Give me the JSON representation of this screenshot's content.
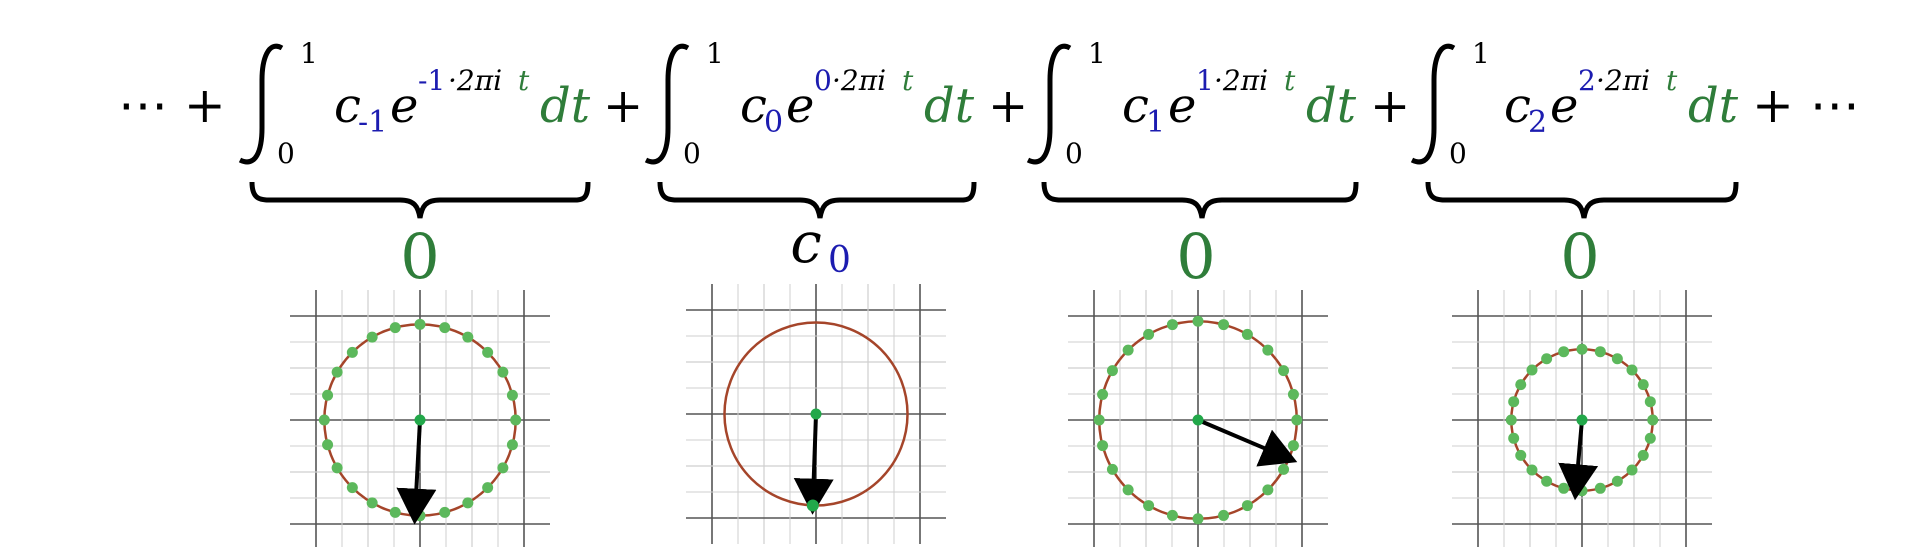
{
  "colors": {
    "index": "#1c1cb0",
    "green": "#2f7d3a",
    "circle": "#a5452a",
    "dots": "#5cb85c",
    "center": "#22a84a",
    "grid_major": "#555555",
    "grid_minor": "#cfcfcf"
  },
  "leading_ellipsis": "⋯ +",
  "trailing_ellipsis": "+ ⋯",
  "plus": "+",
  "terms": [
    {
      "upper": "1",
      "lower": "0",
      "coef": "c",
      "index": "-1",
      "exp_index": "-1",
      "exp_rest": "·2πi",
      "exp_t": "t",
      "dt": "dt",
      "result": "0",
      "result_kind": "zero"
    },
    {
      "upper": "1",
      "lower": "0",
      "coef": "c",
      "index": "0",
      "exp_index": "0",
      "exp_rest": "·2πi",
      "exp_t": "t",
      "dt": "dt",
      "result": "c",
      "result_index": "0",
      "result_kind": "coef"
    },
    {
      "upper": "1",
      "lower": "0",
      "coef": "c",
      "index": "1",
      "exp_index": "1",
      "exp_rest": "·2πi",
      "exp_t": "t",
      "dt": "dt",
      "result": "0",
      "result_kind": "zero"
    },
    {
      "upper": "1",
      "lower": "0",
      "coef": "c",
      "index": "2",
      "exp_index": "2",
      "exp_rest": "·2πi",
      "exp_t": "t",
      "dt": "dt",
      "result": "0",
      "result_kind": "zero"
    }
  ],
  "plots": [
    {
      "radius": 0.92,
      "dot_count": 24,
      "arrow_angle_deg": 267
    },
    {
      "radius": 0.88,
      "dot_count": 1,
      "arrow_angle_deg": 268
    },
    {
      "radius": 0.95,
      "dot_count": 24,
      "arrow_angle_deg": 337
    },
    {
      "radius": 0.68,
      "dot_count": 24,
      "arrow_angle_deg": 265
    }
  ]
}
